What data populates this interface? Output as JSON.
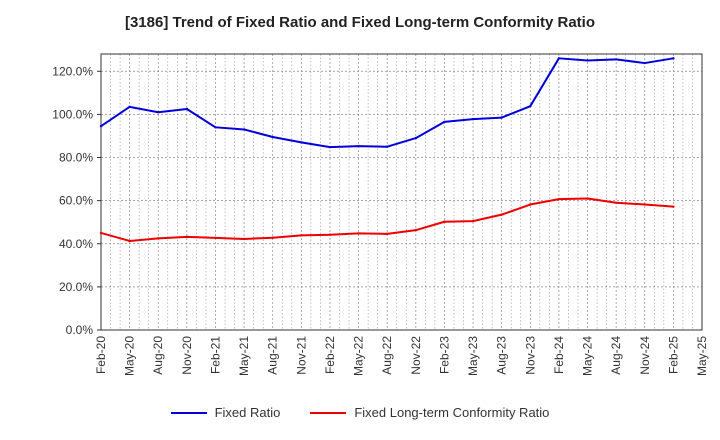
{
  "chart_data": {
    "type": "line",
    "title": "[3186]  Trend of Fixed Ratio and Fixed Long-term Conformity Ratio",
    "xlabel": "",
    "ylabel": "",
    "x_ticks": [
      "Feb-20",
      "May-20",
      "Aug-20",
      "Nov-20",
      "Feb-21",
      "May-21",
      "Aug-21",
      "Nov-21",
      "Feb-22",
      "May-22",
      "Aug-22",
      "Nov-22",
      "Feb-23",
      "May-23",
      "Aug-23",
      "Nov-23",
      "Feb-24",
      "May-24",
      "Aug-24",
      "Nov-24",
      "Feb-25",
      "May-25"
    ],
    "y_ticks": [
      "0.0%",
      "20.0%",
      "40.0%",
      "60.0%",
      "80.0%",
      "100.0%",
      "120.0%"
    ],
    "ylim": [
      0,
      128
    ],
    "grid": true,
    "legend_position": "bottom",
    "series": [
      {
        "name": "Fixed Ratio",
        "color": "#0000dd",
        "x": [
          "Feb-20",
          "May-20",
          "Aug-20",
          "Nov-20",
          "Feb-21",
          "May-21",
          "Aug-21",
          "Nov-21",
          "Feb-22",
          "May-22",
          "Aug-22",
          "Nov-22",
          "Feb-23",
          "May-23",
          "Aug-23",
          "Nov-23",
          "Feb-24",
          "May-24",
          "Aug-24",
          "Nov-24",
          "Feb-25"
        ],
        "values": [
          94.5,
          103.5,
          101.0,
          102.5,
          94.0,
          93.0,
          89.5,
          87.0,
          84.8,
          85.3,
          85.0,
          89.0,
          96.5,
          97.8,
          98.5,
          103.8,
          126.0,
          125.0,
          125.5,
          123.8,
          126.0
        ]
      },
      {
        "name": "Fixed Long-term Conformity Ratio",
        "color": "#ee0000",
        "x": [
          "Feb-20",
          "May-20",
          "Aug-20",
          "Nov-20",
          "Feb-21",
          "May-21",
          "Aug-21",
          "Nov-21",
          "Feb-22",
          "May-22",
          "Aug-22",
          "Nov-22",
          "Feb-23",
          "May-23",
          "Aug-23",
          "Nov-23",
          "Feb-24",
          "May-24",
          "Aug-24",
          "Nov-24",
          "Feb-25"
        ],
        "values": [
          45.0,
          41.3,
          42.5,
          43.2,
          42.7,
          42.2,
          42.8,
          43.9,
          44.2,
          44.8,
          44.6,
          46.3,
          50.2,
          50.5,
          53.5,
          58.2,
          60.7,
          61.0,
          59.0,
          58.2,
          57.2
        ]
      }
    ]
  }
}
